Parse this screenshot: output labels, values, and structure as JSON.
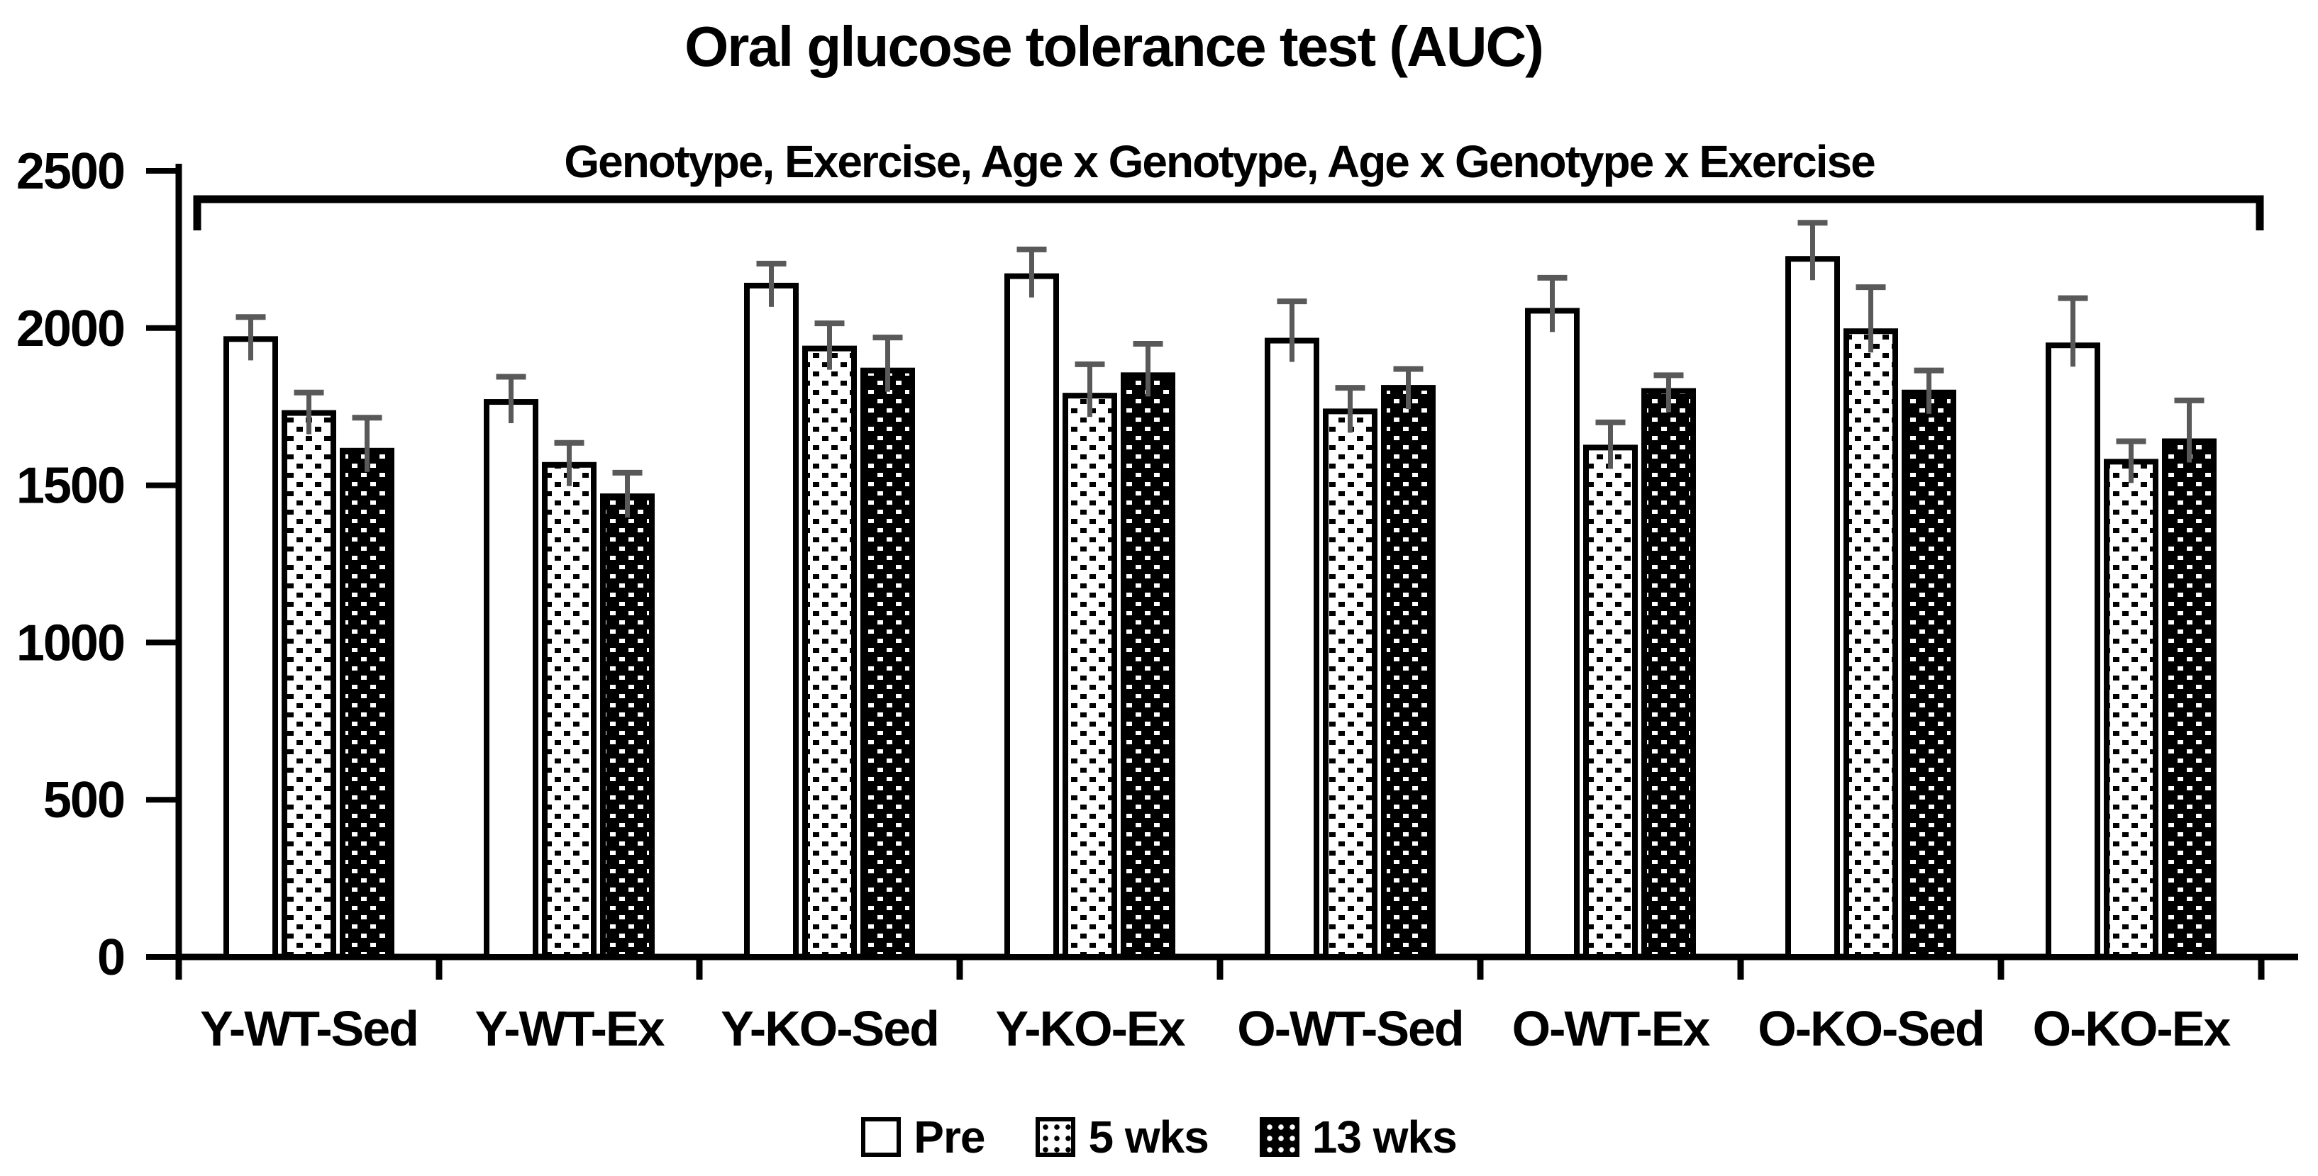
{
  "chart_data": {
    "type": "bar",
    "title": "Oral glucose tolerance test (AUC)",
    "bracket_annotation": "Genotype, Exercise, Age x Genotype, Age x Genotype x Exercise",
    "categories": [
      "Y-WT-Sed",
      "Y-WT-Ex",
      "Y-KO-Sed",
      "Y-KO-Ex",
      "O-WT-Sed",
      "O-WT-Ex",
      "O-KO-Sed",
      "O-KO-Ex"
    ],
    "series": [
      {
        "name": "Pre",
        "pattern": "plain-white",
        "values": [
          1965,
          1765,
          2135,
          2165,
          1960,
          2055,
          2220,
          1945
        ],
        "errors_up": [
          70,
          80,
          70,
          85,
          125,
          105,
          115,
          150
        ]
      },
      {
        "name": "5 wks",
        "pattern": "black-dots-on-white",
        "values": [
          1730,
          1565,
          1935,
          1785,
          1735,
          1620,
          1990,
          1575
        ],
        "errors_up": [
          65,
          70,
          80,
          100,
          75,
          80,
          140,
          65
        ]
      },
      {
        "name": "13 wks",
        "pattern": "white-dots-on-black",
        "values": [
          1610,
          1465,
          1865,
          1850,
          1810,
          1800,
          1795,
          1640
        ],
        "errors_up": [
          105,
          75,
          105,
          100,
          60,
          50,
          70,
          130
        ]
      }
    ],
    "ylim": [
      0,
      2500
    ],
    "yticks": [
      0,
      500,
      1000,
      1500,
      2000,
      2500
    ],
    "ytick_labels": [
      "0",
      "500",
      "1000",
      "1500",
      "2000",
      "2500"
    ],
    "xlabel": "",
    "ylabel": "",
    "grid": false,
    "legend_position": "bottom",
    "error_bars": "upper only",
    "colors": {
      "bar_outline": "#000000",
      "error_bar": "#595959",
      "text": "#000000",
      "background": "#ffffff"
    }
  }
}
